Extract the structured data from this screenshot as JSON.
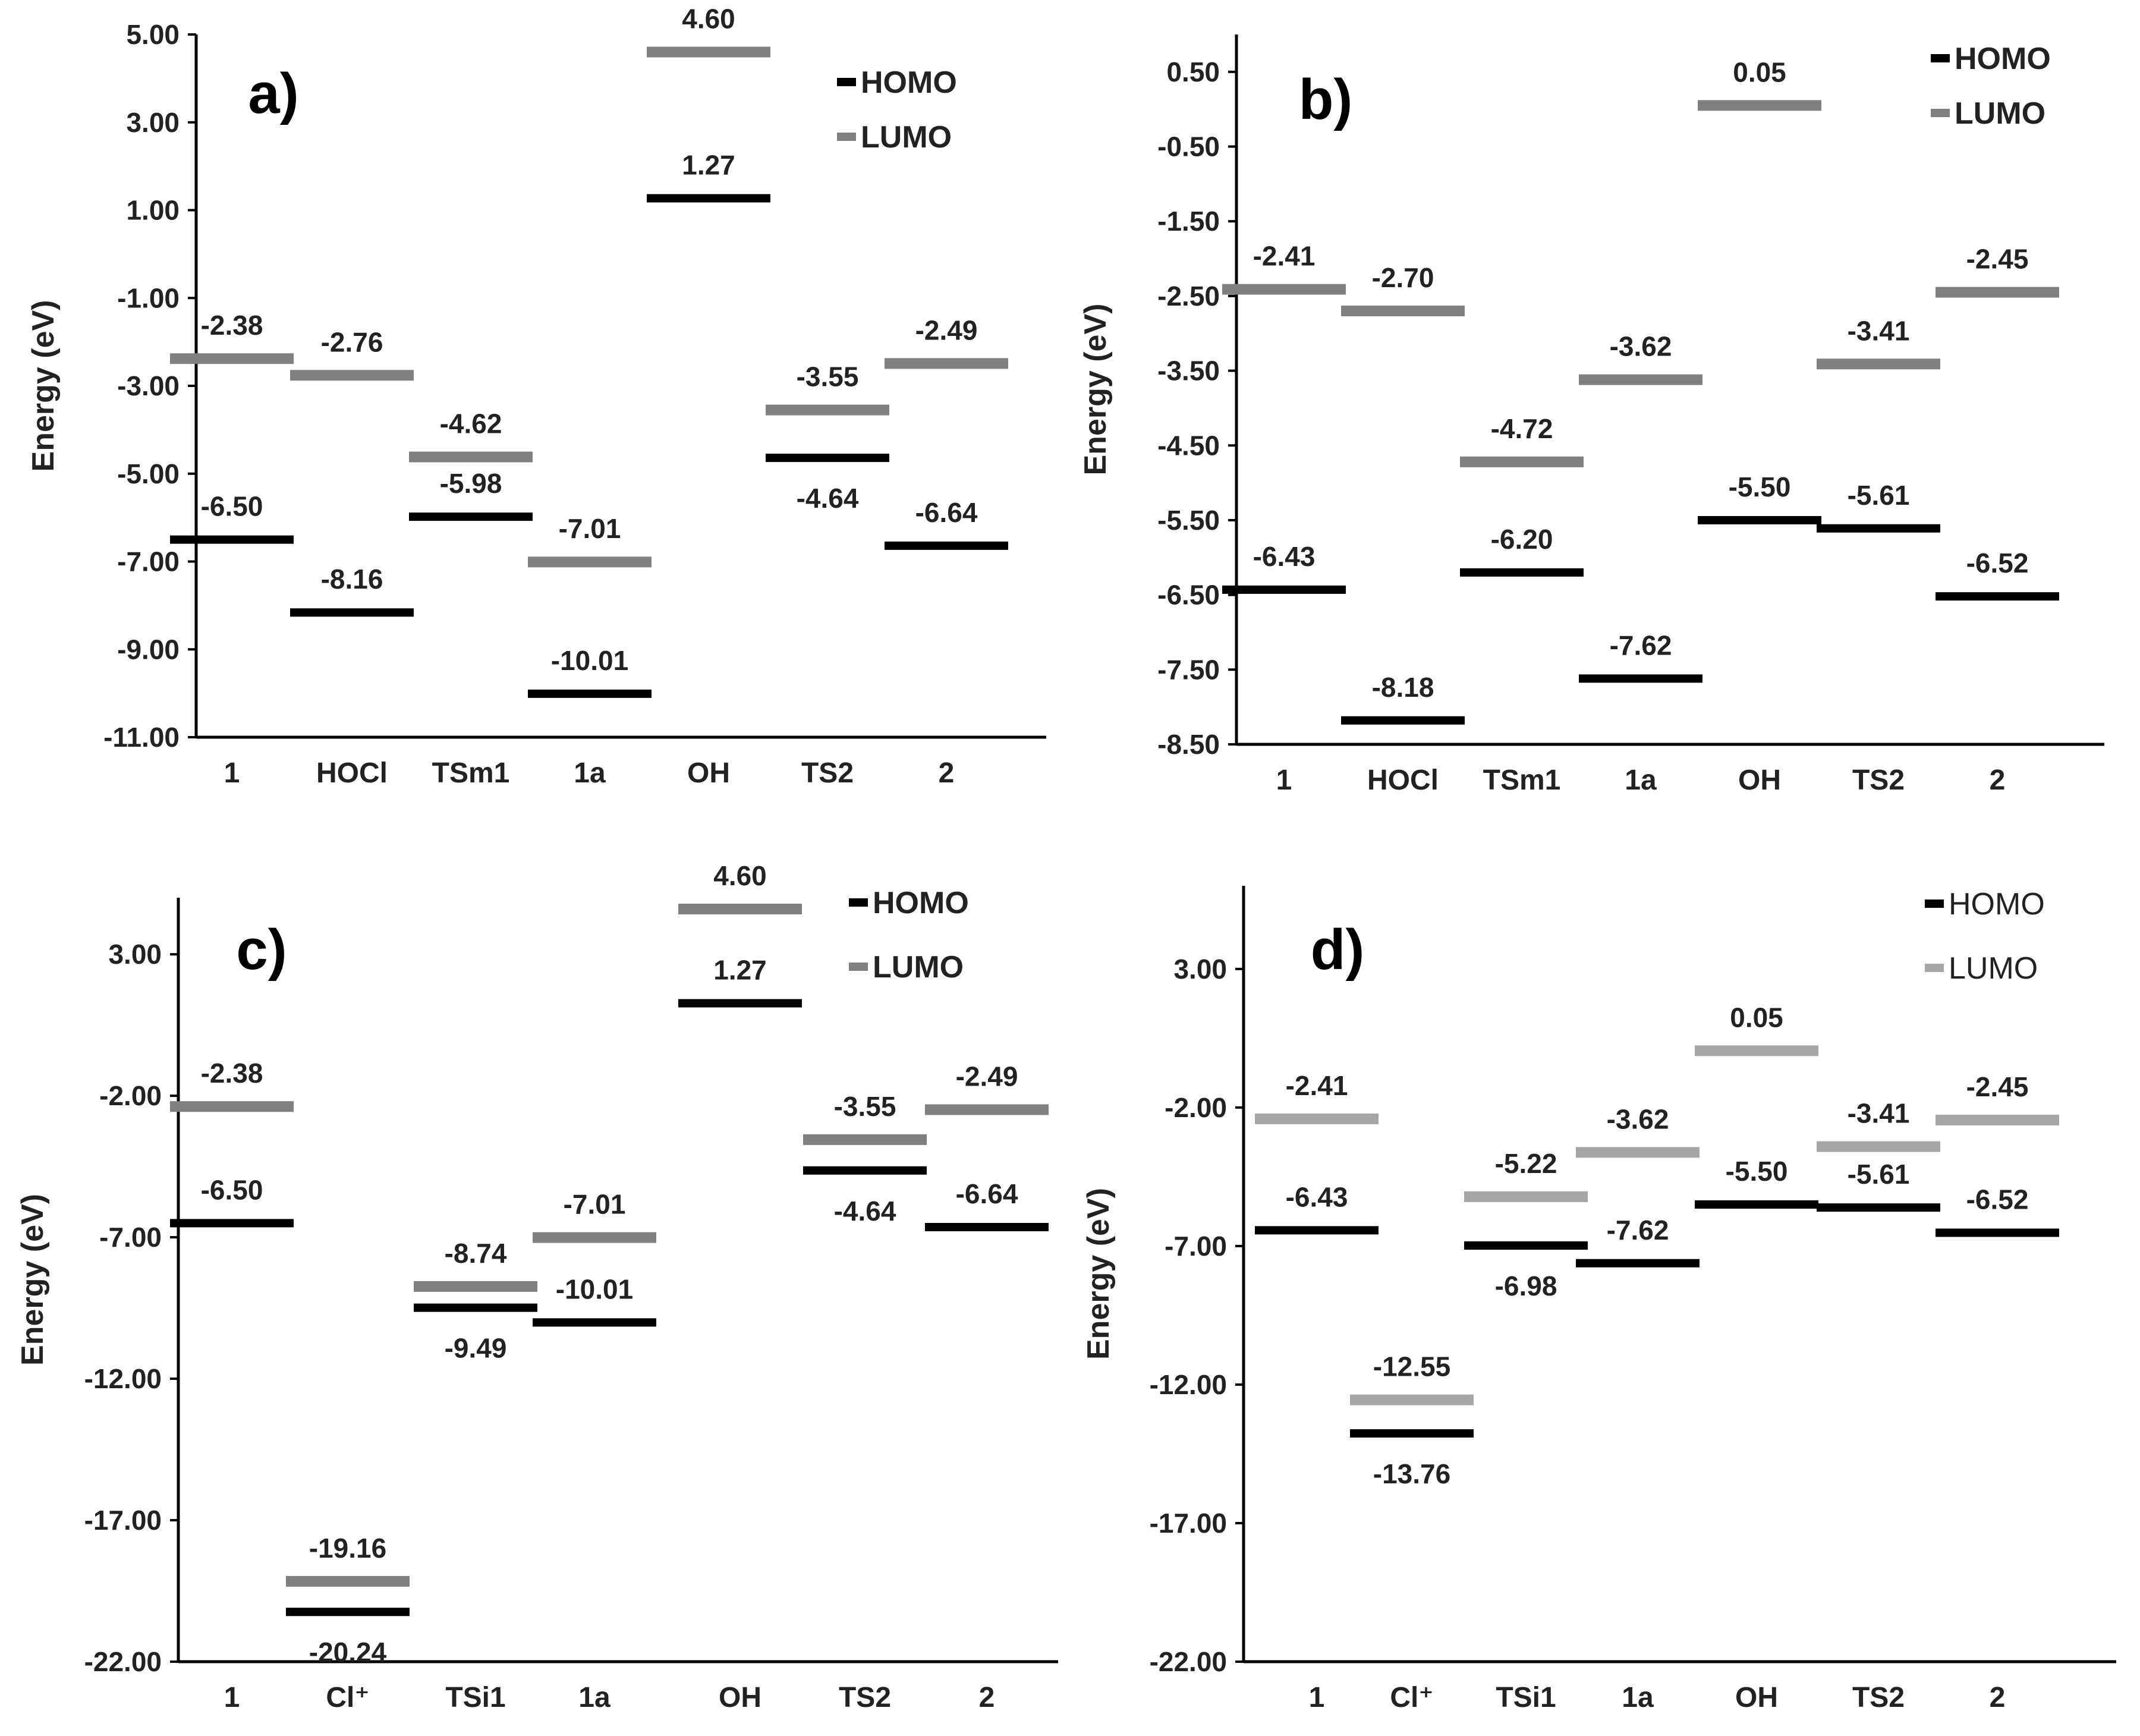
{
  "chart_data": [
    {
      "id": "a",
      "type": "energy-level diagram",
      "panel_label": "a)",
      "ylabel": "Energy (eV)",
      "ylim": [
        -11,
        5
      ],
      "yticks": [
        "5.00",
        "3.00",
        "1.00",
        "-1.00",
        "-3.00",
        "-5.00",
        "-7.00",
        "-9.00",
        "-11.00"
      ],
      "categories": [
        "1",
        "HOCl",
        "TSm1",
        "1a",
        "OH",
        "TS2",
        "2"
      ],
      "legend": [
        "HOMO",
        "LUMO"
      ],
      "colors": {
        "homo": "#000000",
        "lumo": "#808080"
      },
      "series": [
        {
          "name": "HOMO",
          "values": [
            -6.5,
            -8.16,
            -5.98,
            -10.01,
            1.27,
            -4.64,
            -6.64
          ]
        },
        {
          "name": "LUMO",
          "values": [
            -2.38,
            -2.76,
            -4.62,
            -7.01,
            4.6,
            -3.55,
            -2.49
          ]
        }
      ],
      "labels": {
        "homo": [
          "-6.50",
          "-8.16",
          "-5.98",
          "-10.01",
          "1.27",
          "-4.64",
          "-6.64"
        ],
        "lumo": [
          "-2.38",
          "-2.76",
          "-4.62",
          "-7.01",
          "4.60",
          "-3.55",
          "-2.49"
        ]
      }
    },
    {
      "id": "b",
      "type": "energy-level diagram",
      "panel_label": "b)",
      "ylabel": "Energy (eV)",
      "ylim": [
        -8.5,
        1.0
      ],
      "yticks": [
        "0.50",
        "-0.50",
        "-1.50",
        "-2.50",
        "-3.50",
        "-4.50",
        "-5.50",
        "-6.50",
        "-7.50",
        "-8.50"
      ],
      "categories": [
        "1",
        "HOCl",
        "TSm1",
        "1a",
        "OH",
        "TS2",
        "2"
      ],
      "legend": [
        "HOMO",
        "LUMO"
      ],
      "colors": {
        "homo": "#000000",
        "lumo": "#808080"
      },
      "series": [
        {
          "name": "HOMO",
          "values": [
            -6.43,
            -8.18,
            -6.2,
            -7.62,
            -5.5,
            -5.61,
            -6.52
          ]
        },
        {
          "name": "LUMO",
          "values": [
            -2.41,
            -2.7,
            -4.72,
            -3.62,
            0.05,
            -3.41,
            -2.45
          ]
        }
      ],
      "labels": {
        "homo": [
          "-6.43",
          "-8.18",
          "-6.20",
          "-7.62",
          "-5.50",
          "-5.61",
          "-6.52"
        ],
        "lumo": [
          "-2.41",
          "-2.70",
          "-4.72",
          "-3.62",
          "0.05",
          "-3.41",
          "-2.45"
        ]
      }
    },
    {
      "id": "c",
      "type": "energy-level diagram",
      "panel_label": "c)",
      "ylabel": "Energy (eV)",
      "ylim": [
        -22,
        5
      ],
      "yticks": [
        "3.00",
        "-2.00",
        "-7.00",
        "-12.00",
        "-17.00",
        "-22.00"
      ],
      "categories": [
        "1",
        "Cl⁺",
        "TSi1",
        "1a",
        "OH",
        "TS2",
        "2"
      ],
      "legend": [
        "HOMO",
        "LUMO"
      ],
      "colors": {
        "homo": "#000000",
        "lumo": "#808080"
      },
      "series": [
        {
          "name": "HOMO",
          "values": [
            -6.5,
            -20.24,
            -9.49,
            -10.01,
            1.27,
            -4.64,
            -6.64
          ]
        },
        {
          "name": "LUMO",
          "values": [
            -2.38,
            -19.16,
            -8.74,
            -7.01,
            4.6,
            -3.55,
            -2.49
          ]
        }
      ],
      "labels": {
        "homo": [
          "-6.50",
          "-20.24",
          "-9.49",
          "-10.01",
          "1.27",
          "-4.64",
          "-6.64"
        ],
        "lumo": [
          "-2.38",
          "-19.16",
          "-8.74",
          "-7.01",
          "4.60",
          "-3.55",
          "-2.49"
        ]
      }
    },
    {
      "id": "d",
      "type": "energy-level diagram",
      "panel_label": "d)",
      "ylabel": "Energy (eV)",
      "ylim": [
        -22,
        6
      ],
      "yticks": [
        "3.00",
        "-2.00",
        "-7.00",
        "-12.00",
        "-17.00",
        "-22.00"
      ],
      "categories": [
        "1",
        "Cl⁺",
        "TSi1",
        "1a",
        "OH",
        "TS2",
        "2"
      ],
      "legend": [
        "HOMO",
        "LUMO"
      ],
      "colors": {
        "homo": "#000000",
        "lumo": "#a6a6a6"
      },
      "series": [
        {
          "name": "HOMO",
          "values": [
            -6.43,
            -13.76,
            -6.98,
            -7.62,
            -5.5,
            -5.61,
            -6.52
          ]
        },
        {
          "name": "LUMO",
          "values": [
            -2.41,
            -12.55,
            -5.22,
            -3.62,
            0.05,
            -3.41,
            -2.45
          ]
        }
      ],
      "labels": {
        "homo": [
          "-6.43",
          "-13.76",
          "-6.98",
          "-7.62",
          "-5.50",
          "-5.61",
          "-6.52"
        ],
        "lumo": [
          "-2.41",
          "-12.55",
          "-5.22",
          "-3.62",
          "0.05",
          "-3.41",
          "-2.45"
        ]
      }
    }
  ]
}
